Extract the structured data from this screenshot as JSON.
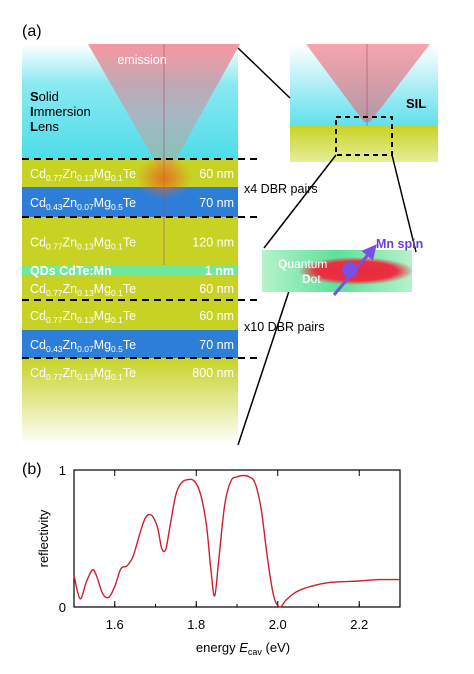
{
  "panel_a": {
    "label": "(a)",
    "emission": "emission",
    "lens": {
      "line1_initial": "S",
      "line1_rest": "olid",
      "line2_initial": "I",
      "line2_rest": "mmersion",
      "line3_initial": "L",
      "line3_rest": "ens"
    },
    "layers": [
      {
        "kind": "CdZnMgTe-low",
        "p1": "Cd",
        "s1": "0.77",
        "p2": "Zn",
        "s2": "0.13",
        "p3": "Mg",
        "s3": "0.1",
        "p4": "Te",
        "thickness": "60 nm",
        "color": "#c8d225"
      },
      {
        "kind": "CdZnMgTe-high",
        "p1": "Cd",
        "s1": "0.43",
        "p2": "Zn",
        "s2": "0.07",
        "p3": "Mg",
        "s3": "0.5",
        "p4": "Te",
        "thickness": "70 nm",
        "color": "#2d7ed8"
      },
      {
        "kind": "CdZnMgTe-low",
        "p1": "Cd",
        "s1": "0.77",
        "p2": "Zn",
        "s2": "0.13",
        "p3": "Mg",
        "s3": "0.1",
        "p4": "Te",
        "thickness": "120 nm",
        "color": "#c8d225"
      },
      {
        "kind": "CdZnMgTe-low",
        "p1": "Cd",
        "s1": "0.77",
        "p2": "Zn",
        "s2": "0.13",
        "p3": "Mg",
        "s3": "0.1",
        "p4": "Te",
        "thickness": "60 nm",
        "color": "#c8d225"
      },
      {
        "kind": "CdZnMgTe-low",
        "p1": "Cd",
        "s1": "0.77",
        "p2": "Zn",
        "s2": "0.13",
        "p3": "Mg",
        "s3": "0.1",
        "p4": "Te",
        "thickness": "60 nm",
        "color": "#c8d225"
      },
      {
        "kind": "CdZnMgTe-high",
        "p1": "Cd",
        "s1": "0.43",
        "p2": "Zn",
        "s2": "0.07",
        "p3": "Mg",
        "s3": "0.5",
        "p4": "Te",
        "thickness": "70 nm",
        "color": "#2d7ed8"
      },
      {
        "kind": "CdZnMgTe-low",
        "p1": "Cd",
        "s1": "0.77",
        "p2": "Zn",
        "s2": "0.13",
        "p3": "Mg",
        "s3": "0.1",
        "p4": "Te",
        "thickness": "800 nm",
        "color": "#c8d225"
      }
    ],
    "qd_layer": {
      "label": "QDs CdTe:Mn",
      "thickness": "1 nm"
    },
    "dbr_top": "x4 DBR pairs",
    "dbr_bottom": "x10 DBR pairs",
    "sil_label": "SIL",
    "inset": {
      "q_initial": "Q",
      "q_rest": "uantum",
      "d_initial": "D",
      "d_rest": "ot",
      "spin": "Mn spin"
    },
    "colors": {
      "lens": "#7ee6f0",
      "low": "#c8d225",
      "high": "#2d7ed8",
      "qd": "#6ee89a",
      "emission": "#ef7b86",
      "spin": "#7b4fe0"
    }
  },
  "panel_b": {
    "label": "(b)",
    "chart_data": {
      "type": "line",
      "xlabel_pre": "energy ",
      "xlabel_var": "E",
      "xlabel_sub": "cav",
      "xlabel_post": " (eV)",
      "ylabel": "reflectivity",
      "xlim": [
        1.5,
        2.3
      ],
      "ylim": [
        0,
        1
      ],
      "xticks": [
        1.6,
        1.8,
        2.0,
        2.2
      ],
      "xtick_labels": [
        "1.6",
        "1.8",
        "2.0",
        "2.2"
      ],
      "yticks": [
        0,
        1
      ],
      "ytick_labels": [
        "0",
        "1"
      ],
      "series": [
        {
          "color": "#cc1f2f",
          "x": [
            1.5,
            1.515,
            1.53,
            1.545,
            1.555,
            1.57,
            1.585,
            1.6,
            1.615,
            1.63,
            1.645,
            1.66,
            1.675,
            1.69,
            1.705,
            1.715,
            1.725,
            1.735,
            1.75,
            1.765,
            1.78,
            1.795,
            1.81,
            1.825,
            1.835,
            1.845,
            1.855,
            1.87,
            1.885,
            1.9,
            1.915,
            1.93,
            1.945,
            1.96,
            1.975,
            1.99,
            2.005,
            2.02,
            2.04,
            2.06,
            2.08,
            2.1,
            2.13,
            2.16,
            2.2,
            2.25,
            2.3
          ],
          "y": [
            0.23,
            0.06,
            0.18,
            0.27,
            0.23,
            0.1,
            0.07,
            0.15,
            0.28,
            0.3,
            0.37,
            0.52,
            0.65,
            0.67,
            0.58,
            0.43,
            0.42,
            0.58,
            0.82,
            0.91,
            0.93,
            0.92,
            0.83,
            0.6,
            0.3,
            0.08,
            0.34,
            0.75,
            0.92,
            0.95,
            0.96,
            0.95,
            0.9,
            0.7,
            0.35,
            0.08,
            0.0,
            0.05,
            0.1,
            0.13,
            0.15,
            0.165,
            0.18,
            0.185,
            0.19,
            0.2,
            0.2
          ]
        }
      ]
    }
  }
}
